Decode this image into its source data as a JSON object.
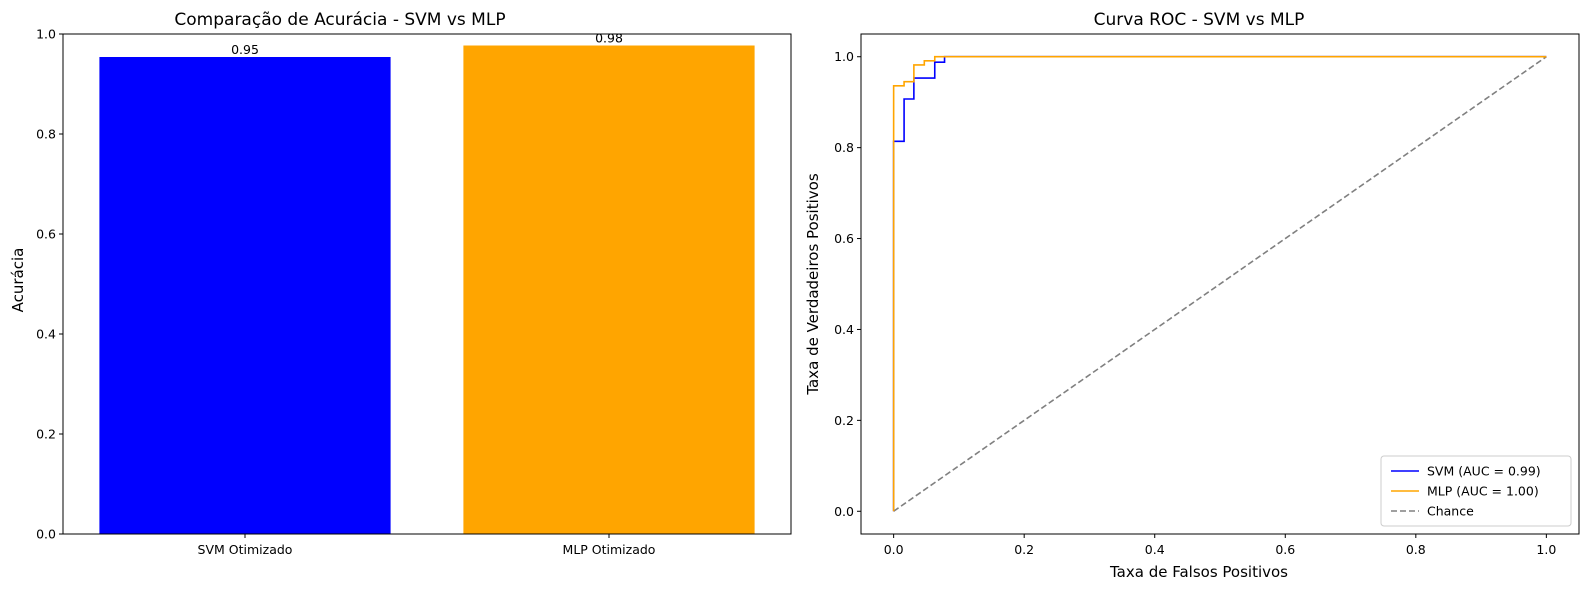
{
  "chart_data": [
    {
      "type": "bar",
      "title": "Comparação de Acurácia - SVM vs MLP",
      "xlabel": "",
      "ylabel": "Acurácia",
      "categories": [
        "SVM Otimizado",
        "MLP Otimizado"
      ],
      "values": [
        0.954,
        0.977
      ],
      "data_labels": [
        "0.95",
        "0.98"
      ],
      "colors": [
        "#0000ff",
        "#ffa500"
      ],
      "ylim": [
        0,
        1
      ],
      "yticks": [
        "0.0",
        "0.2",
        "0.4",
        "0.6",
        "0.8",
        "1.0"
      ],
      "grid": false
    },
    {
      "type": "line",
      "title": "Curva ROC - SVM vs MLP",
      "xlabel": "Taxa de Falsos Positivos",
      "ylabel": "Taxa de Verdadeiros Positivos",
      "xlim": [
        -0.05,
        1.05
      ],
      "ylim": [
        -0.05,
        1.05
      ],
      "xticks": [
        "0.0",
        "0.2",
        "0.4",
        "0.6",
        "0.8",
        "1.0"
      ],
      "yticks": [
        "0.0",
        "0.2",
        "0.4",
        "0.6",
        "0.8",
        "1.0"
      ],
      "grid": false,
      "legend_position": "bottom-right",
      "series": [
        {
          "name": "SVM (AUC = 0.99)",
          "color": "#0000ff",
          "dash": "solid",
          "x": [
            0,
            0,
            0.016,
            0.016,
            0.031,
            0.031,
            0.063,
            0.063,
            0.078,
            0.078,
            1.0
          ],
          "y": [
            0,
            0.814,
            0.814,
            0.907,
            0.907,
            0.953,
            0.953,
            0.988,
            0.988,
            1.0,
            1.0
          ]
        },
        {
          "name": "MLP (AUC = 1.00)",
          "color": "#ffa500",
          "dash": "solid",
          "x": [
            0,
            0,
            0.016,
            0.016,
            0.031,
            0.031,
            0.047,
            0.047,
            0.063,
            0.063,
            1.0
          ],
          "y": [
            0,
            0.936,
            0.936,
            0.945,
            0.945,
            0.982,
            0.982,
            0.991,
            0.991,
            1.0,
            1.0
          ]
        },
        {
          "name": "Chance",
          "color": "#808080",
          "dash": "dashed",
          "x": [
            0,
            1
          ],
          "y": [
            0,
            1
          ]
        }
      ]
    }
  ]
}
